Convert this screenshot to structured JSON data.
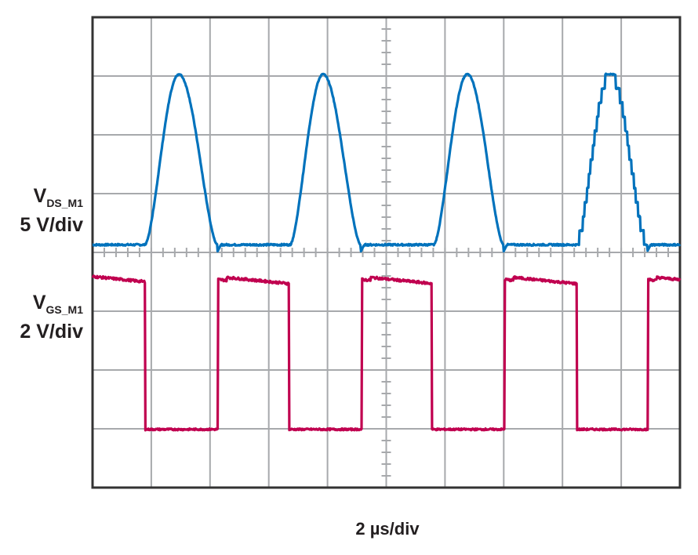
{
  "chart_data": {
    "type": "line",
    "title": "",
    "xlabel": "2 µs/div",
    "x_unit": "µs",
    "y_unit": "div",
    "xlim": [
      0,
      20
    ],
    "ylim": [
      0,
      8
    ],
    "grid": true,
    "grid_divisions": {
      "x": 10,
      "y": 8
    },
    "series": [
      {
        "name": "VDS_M1",
        "label_main": "V",
        "label_sub": "DS_M1",
        "scale": "5 V/div",
        "color": "#0072bc",
        "baseline_div": 4.13,
        "peak_div": 7.03,
        "pulses": [
          {
            "start": 1.79,
            "peak": 2.94,
            "end": 4.25,
            "stepped": false
          },
          {
            "start": 6.73,
            "peak": 7.85,
            "end": 9.13,
            "stepped": false
          },
          {
            "start": 11.62,
            "peak": 12.76,
            "end": 13.99,
            "stepped": false
          },
          {
            "start": 16.48,
            "peak": 17.62,
            "end": 18.88,
            "stepped": true
          }
        ]
      },
      {
        "name": "VGS_M1",
        "label_main": "V",
        "label_sub": "GS_M1",
        "scale": "2 V/div",
        "color": "#c0004f",
        "high_div": 3.59,
        "low_div": 0.99,
        "low_intervals": [
          [
            1.79,
            4.27
          ],
          [
            6.68,
            9.16
          ],
          [
            11.54,
            14.02
          ],
          [
            16.48,
            18.9
          ]
        ]
      }
    ]
  }
}
